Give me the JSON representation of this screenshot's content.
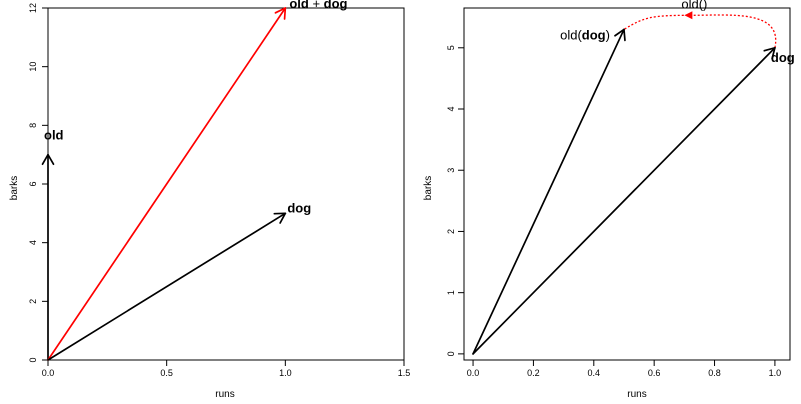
{
  "chart_data": [
    {
      "type": "line",
      "xlabel": "runs",
      "ylabel": "barks",
      "xlim": [
        0,
        1.5
      ],
      "ylim": [
        0,
        12
      ],
      "x_ticks": [
        "0.0",
        "0.5",
        "1.0",
        "1.5"
      ],
      "y_ticks": [
        "0",
        "2",
        "4",
        "6",
        "8",
        "10",
        "12"
      ],
      "vectors": [
        {
          "id": "old",
          "from": [
            0,
            0
          ],
          "to": [
            0,
            7
          ],
          "color": "#000000",
          "label_parts": [
            {
              "text": "old",
              "bold": true
            }
          ]
        },
        {
          "id": "old-plus-dog",
          "from": [
            0,
            0
          ],
          "to": [
            1,
            12
          ],
          "color": "#ff0000",
          "label_parts": [
            {
              "text": "old",
              "bold": true
            },
            {
              "text": " + ",
              "bold": false
            },
            {
              "text": "dog",
              "bold": true
            }
          ]
        },
        {
          "id": "dog",
          "from": [
            0,
            0
          ],
          "to": [
            1,
            5
          ],
          "color": "#000000",
          "label_parts": [
            {
              "text": "dog",
              "bold": true
            }
          ]
        }
      ]
    },
    {
      "type": "line",
      "xlabel": "runs",
      "ylabel": "barks",
      "xlim": [
        0,
        1.0
      ],
      "ylim": [
        0,
        5.5
      ],
      "x_ticks": [
        "0.0",
        "0.2",
        "0.4",
        "0.6",
        "0.8",
        "1.0"
      ],
      "y_ticks": [
        "0",
        "1",
        "2",
        "3",
        "4",
        "5"
      ],
      "vectors": [
        {
          "id": "old-of-dog",
          "from": [
            0,
            0
          ],
          "to": [
            0.5,
            5.3
          ],
          "color": "#000000",
          "label_parts": [
            {
              "text": "old(",
              "bold": false
            },
            {
              "text": "dog",
              "bold": true
            },
            {
              "text": ")",
              "bold": false
            }
          ]
        },
        {
          "id": "dog",
          "from": [
            0,
            0
          ],
          "to": [
            1.0,
            5.0
          ],
          "color": "#000000",
          "label_parts": [
            {
              "text": "dog",
              "bold": true
            }
          ]
        }
      ],
      "transform": {
        "label": "old()",
        "from": [
          1.0,
          5.0
        ],
        "to": [
          0.5,
          5.3
        ],
        "color": "#ff0000",
        "style": "dotted",
        "peak": [
          0.72,
          5.4
        ]
      }
    }
  ]
}
